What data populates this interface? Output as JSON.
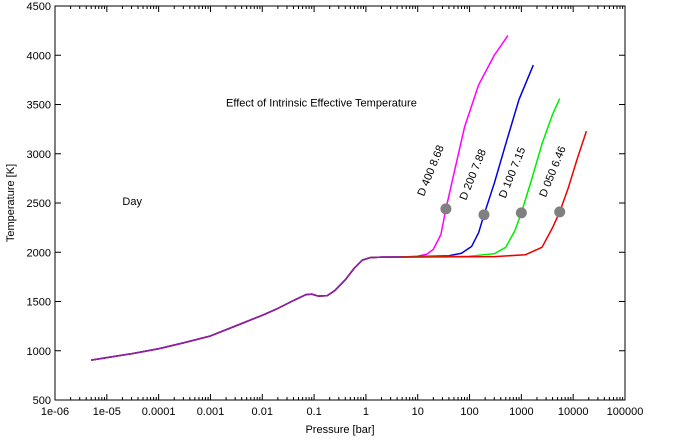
{
  "chart_data": {
    "type": "line",
    "title": "",
    "xlabel": "Pressure [bar]",
    "ylabel": "Temperature [K]",
    "xscale": "log",
    "xlim": [
      1e-06,
      100000
    ],
    "ylim": [
      500,
      4500
    ],
    "grid": false,
    "legend": "none",
    "x_ticks": [
      {
        "value": 1e-06,
        "label": "1e-06"
      },
      {
        "value": 1e-05,
        "label": "1e-05"
      },
      {
        "value": 0.0001,
        "label": "0.0001"
      },
      {
        "value": 0.001,
        "label": "0.001"
      },
      {
        "value": 0.01,
        "label": "0.01"
      },
      {
        "value": 0.1,
        "label": "0.1"
      },
      {
        "value": 1,
        "label": "1"
      },
      {
        "value": 10,
        "label": "10"
      },
      {
        "value": 100,
        "label": "100"
      },
      {
        "value": 1000,
        "label": "1000"
      },
      {
        "value": 10000,
        "label": "10000"
      },
      {
        "value": 100000,
        "label": "100000"
      }
    ],
    "y_ticks": [
      {
        "value": 500,
        "label": "500"
      },
      {
        "value": 1000,
        "label": "1000"
      },
      {
        "value": 1500,
        "label": "1500"
      },
      {
        "value": 2000,
        "label": "2000"
      },
      {
        "value": 2500,
        "label": "2500"
      },
      {
        "value": 3000,
        "label": "3000"
      },
      {
        "value": 3500,
        "label": "3500"
      },
      {
        "value": 4000,
        "label": "4000"
      },
      {
        "value": 4500,
        "label": "4500"
      }
    ],
    "annotations": [
      {
        "text": "Effect of Intrinsic Effective Temperature",
        "x": 0.002,
        "y": 3480
      },
      {
        "text": "Day",
        "x": 2e-05,
        "y": 2480
      }
    ],
    "common_path": [
      [
        5e-06,
        905
      ],
      [
        1e-05,
        930
      ],
      [
        3e-05,
        970
      ],
      [
        0.0001,
        1020
      ],
      [
        0.0003,
        1080
      ],
      [
        0.001,
        1150
      ],
      [
        0.003,
        1250
      ],
      [
        0.01,
        1360
      ],
      [
        0.02,
        1430
      ],
      [
        0.04,
        1510
      ],
      [
        0.07,
        1570
      ],
      [
        0.09,
        1575
      ],
      [
        0.12,
        1555
      ],
      [
        0.18,
        1560
      ],
      [
        0.25,
        1610
      ],
      [
        0.4,
        1720
      ],
      [
        0.6,
        1840
      ],
      [
        0.85,
        1920
      ],
      [
        1.2,
        1945
      ],
      [
        2,
        1950
      ],
      [
        5,
        1952
      ]
    ],
    "series": [
      {
        "name": "D 400  8.68",
        "color": "#ff00ff",
        "path": [
          [
            10,
            1960
          ],
          [
            15,
            1980
          ],
          [
            20,
            2030
          ],
          [
            28,
            2180
          ],
          [
            35,
            2440
          ],
          [
            50,
            2800
          ],
          [
            80,
            3270
          ],
          [
            150,
            3700
          ],
          [
            300,
            4000
          ],
          [
            550,
            4200
          ]
        ],
        "marker": {
          "x": 35,
          "y": 2440
        }
      },
      {
        "name": "D 200  7.88",
        "color": "#0000dd",
        "path": [
          [
            10,
            1955
          ],
          [
            40,
            1965
          ],
          [
            70,
            1990
          ],
          [
            110,
            2060
          ],
          [
            150,
            2200
          ],
          [
            190,
            2380
          ],
          [
            300,
            2700
          ],
          [
            500,
            3100
          ],
          [
            900,
            3550
          ],
          [
            1700,
            3900
          ]
        ],
        "marker": {
          "x": 190,
          "y": 2380
        }
      },
      {
        "name": "D 100  7.15",
        "color": "#00ee00",
        "path": [
          [
            10,
            1953
          ],
          [
            100,
            1960
          ],
          [
            300,
            1985
          ],
          [
            500,
            2050
          ],
          [
            750,
            2220
          ],
          [
            1000,
            2400
          ],
          [
            1600,
            2750
          ],
          [
            2500,
            3100
          ],
          [
            4000,
            3400
          ],
          [
            5500,
            3560
          ]
        ],
        "marker": {
          "x": 1000,
          "y": 2400
        }
      },
      {
        "name": "D 050  6.46",
        "color": "#ee0000",
        "path": [
          [
            10,
            1952
          ],
          [
            300,
            1955
          ],
          [
            1200,
            1975
          ],
          [
            2500,
            2050
          ],
          [
            4000,
            2250
          ],
          [
            5500,
            2410
          ],
          [
            8000,
            2650
          ],
          [
            12000,
            2950
          ],
          [
            18000,
            3230
          ]
        ],
        "marker": {
          "x": 5500,
          "y": 2410
        }
      }
    ]
  }
}
